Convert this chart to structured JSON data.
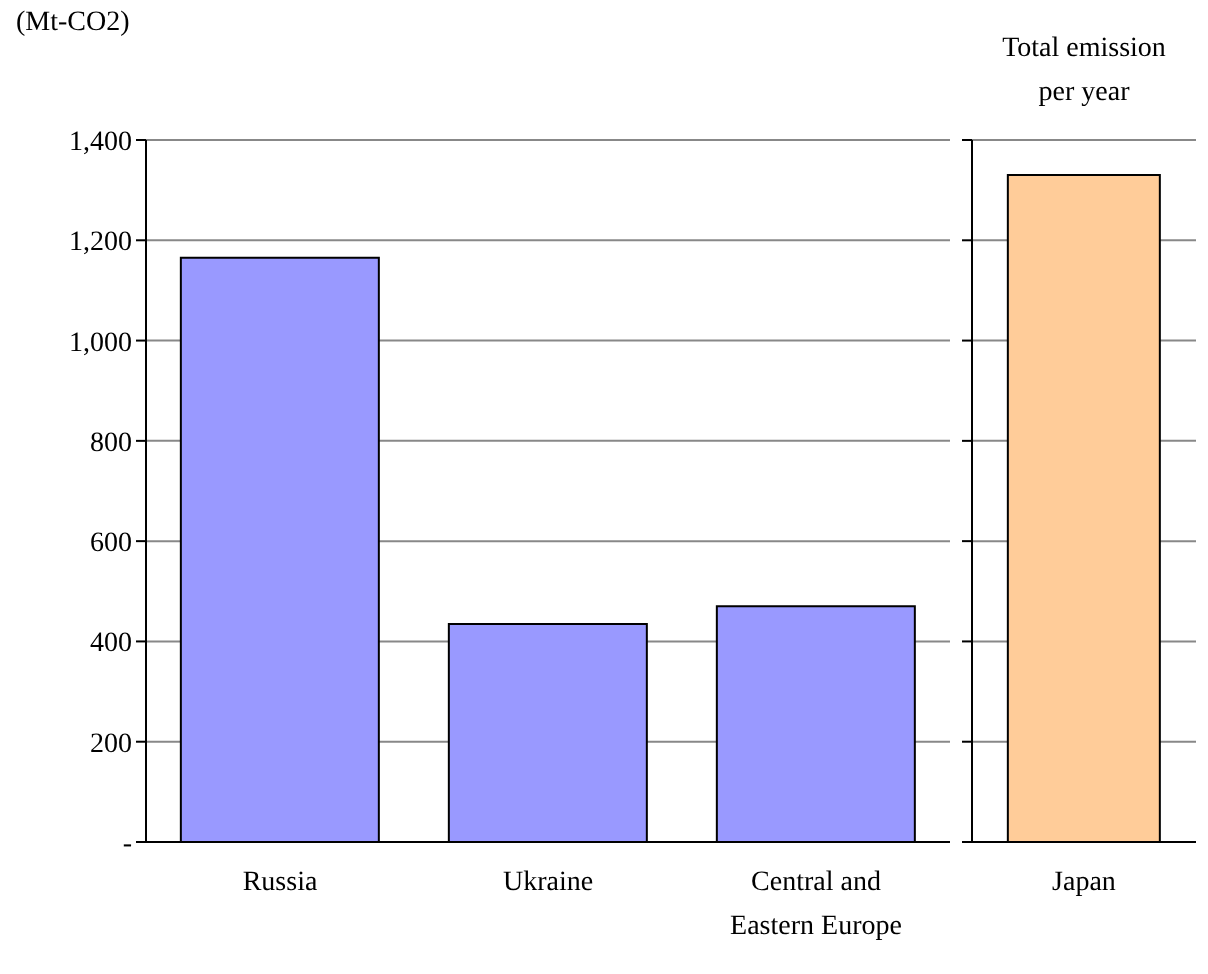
{
  "chart_data": [
    {
      "type": "bar",
      "ylabel": "(Mt-CO2)",
      "categories": [
        "Russia",
        "Ukraine",
        "Central and Eastern Europe"
      ],
      "values": [
        1165,
        435,
        470
      ],
      "color": "#9999ff",
      "ylim": [
        0,
        1400
      ],
      "yticks": [
        {
          "value": 0,
          "label": "-"
        },
        {
          "value": 200,
          "label": "200"
        },
        {
          "value": 400,
          "label": "400"
        },
        {
          "value": 600,
          "label": "600"
        },
        {
          "value": 800,
          "label": "800"
        },
        {
          "value": 1000,
          "label": "1,000"
        },
        {
          "value": 1200,
          "label": "1,200"
        },
        {
          "value": 1400,
          "label": "1,400"
        }
      ],
      "grid": "y"
    },
    {
      "type": "bar",
      "title": "Total emission per year",
      "categories": [
        "Japan"
      ],
      "values": [
        1330
      ],
      "color": "#ffcc99",
      "ylim": [
        0,
        1400
      ],
      "yticks": [
        {
          "value": 0,
          "label": null
        },
        {
          "value": 200,
          "label": null
        },
        {
          "value": 400,
          "label": null
        },
        {
          "value": 600,
          "label": null
        },
        {
          "value": 800,
          "label": null
        },
        {
          "value": 1000,
          "label": null
        },
        {
          "value": 1200,
          "label": null
        },
        {
          "value": 1400,
          "label": null
        }
      ],
      "grid": "y",
      "tick_labels": "x"
    }
  ]
}
